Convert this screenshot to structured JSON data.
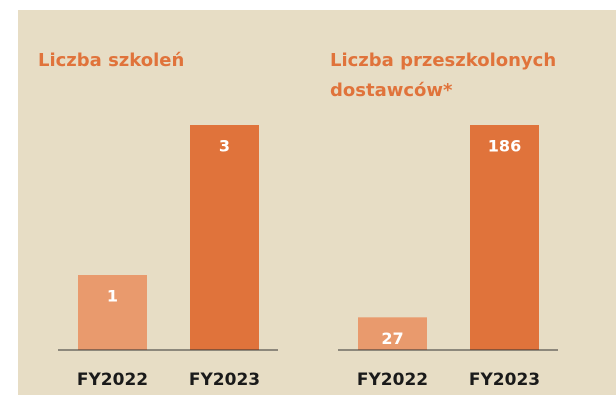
{
  "chart_data": [
    {
      "type": "bar",
      "title": "Liczba szkoleń",
      "categories": [
        "FY2022",
        "FY2023"
      ],
      "values": [
        1,
        3
      ],
      "colors": [
        "#e99a6d",
        "#e0733b"
      ]
    },
    {
      "type": "bar",
      "title": "Liczba przeszkolonych dostawców*",
      "categories": [
        "FY2022",
        "FY2023"
      ],
      "values": [
        27,
        186
      ],
      "colors": [
        "#e99a6d",
        "#e0733b"
      ]
    }
  ]
}
